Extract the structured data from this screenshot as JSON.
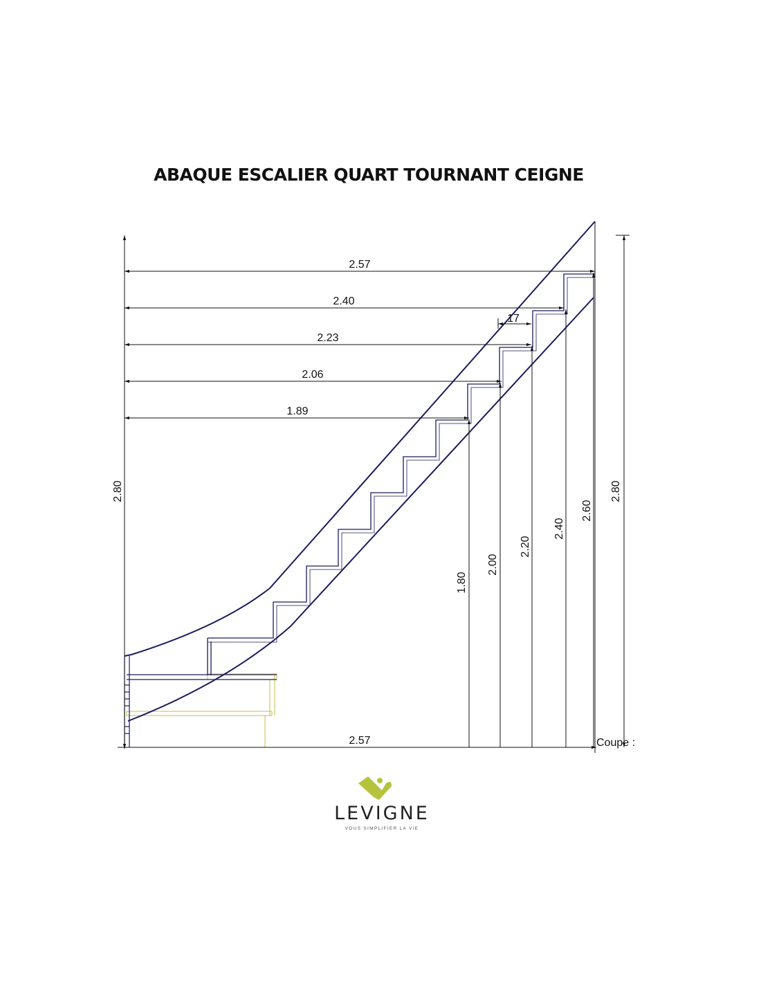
{
  "title": "ABAQUE ESCALIER QUART TOURNANT CEIGNE",
  "colors": {
    "stringer": "#1a1a5e",
    "dimension": "#111111",
    "ghost_steps": "#c9b84a",
    "brand_green": "#b5c33c"
  },
  "dimensions": {
    "total_height_left": "2.80",
    "total_height_right": "2.80",
    "base_length": "2.57",
    "tread_depth": "17",
    "horizontal": [
      "2.57",
      "2.40",
      "2.23",
      "2.06",
      "1.89"
    ],
    "vertical": [
      "1.80",
      "2.00",
      "2.20",
      "2.40",
      "2.60"
    ]
  },
  "section_label": "Coupe :",
  "logo": {
    "brand": "LEVIGNE",
    "tagline": "VOUS SIMPLIFIER LA VIE"
  }
}
